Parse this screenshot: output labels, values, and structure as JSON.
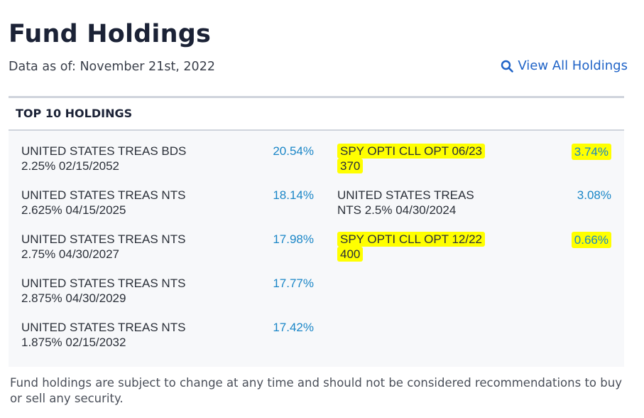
{
  "header": {
    "title": "Fund Holdings",
    "as_of": "Data as of: November 21st, 2022",
    "view_all_label": "View All Holdings",
    "view_all_icon": "search-icon"
  },
  "panel": {
    "heading": "TOP 10 HOLDINGS",
    "left": [
      {
        "name1": "UNITED STATES TREAS BDS",
        "name2": "2.25% 02/15/2052",
        "pct": "20.54%"
      },
      {
        "name1": "UNITED STATES TREAS NTS",
        "name2": "2.625% 04/15/2025",
        "pct": "18.14%"
      },
      {
        "name1": "UNITED STATES TREAS NTS",
        "name2": "2.75% 04/30/2027",
        "pct": "17.98%"
      },
      {
        "name1": "UNITED STATES TREAS NTS",
        "name2": "2.875% 04/30/2029",
        "pct": "17.77%"
      },
      {
        "name1": "UNITED STATES TREAS NTS",
        "name2": "1.875% 02/15/2032",
        "pct": "17.42%"
      }
    ],
    "right": [
      {
        "name1": "SPY OPTI CLL OPT 06/23",
        "name2": "370",
        "pct": "3.74%",
        "highlighted": true
      },
      {
        "name1": "UNITED STATES TREAS",
        "name2": "NTS 2.5% 04/30/2024",
        "pct": "3.08%",
        "highlighted": false
      },
      {
        "name1": "SPY OPTI CLL OPT 12/22",
        "name2": "400",
        "pct": "0.66%",
        "highlighted": true
      }
    ]
  },
  "footer": {
    "disclaimer": "Fund holdings are subject to change at any time and should not be considered recommendations to buy or sell any security."
  },
  "colors": {
    "link": "#1f63c7",
    "percent": "#1a86c7",
    "highlight": "#ffff00",
    "panel_bg": "#f7f8fa"
  }
}
